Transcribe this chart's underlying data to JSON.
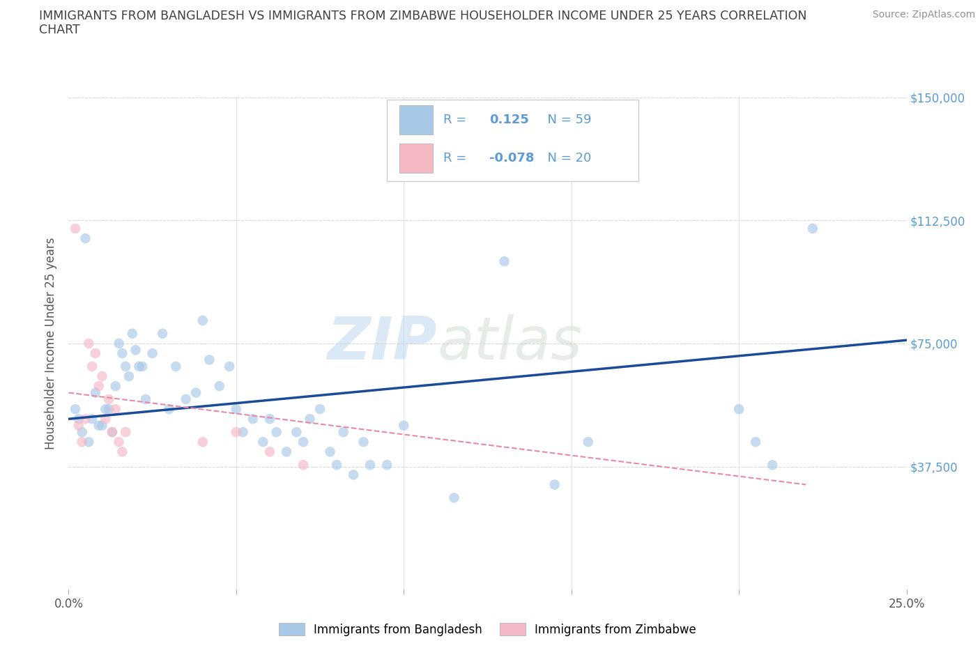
{
  "title_line1": "IMMIGRANTS FROM BANGLADESH VS IMMIGRANTS FROM ZIMBABWE HOUSEHOLDER INCOME UNDER 25 YEARS CORRELATION",
  "title_line2": "CHART",
  "source": "Source: ZipAtlas.com",
  "ylabel": "Householder Income Under 25 years",
  "xlim": [
    0,
    0.25
  ],
  "ylim": [
    0,
    150000
  ],
  "xticks": [
    0.0,
    0.05,
    0.1,
    0.15,
    0.2,
    0.25
  ],
  "xticklabels": [
    "0.0%",
    "",
    "",
    "",
    "",
    "25.0%"
  ],
  "yticks": [
    0,
    37500,
    75000,
    112500,
    150000
  ],
  "yticklabels_right": [
    "",
    "$37,500",
    "$75,000",
    "$112,500",
    "$150,000"
  ],
  "bg_color": "#ffffff",
  "grid_color": "#d8d8d8",
  "watermark_zip": "ZIP",
  "watermark_atlas": "atlas",
  "bangladesh_color": "#a8c8e8",
  "zimbabwe_color": "#f5b8c5",
  "bangladesh_line_color": "#1a4a9a",
  "zimbabwe_line_color": "#e888a8",
  "R_bangladesh": "0.125",
  "N_bangladesh": "59",
  "R_zimbabwe": "-0.078",
  "N_zimbabwe": "20",
  "bangladesh_label": "Immigrants from Bangladesh",
  "zimbabwe_label": "Immigrants from Zimbabwe",
  "bangladesh_scatter": [
    [
      0.002,
      55000
    ],
    [
      0.005,
      107000
    ],
    [
      0.012,
      55000
    ],
    [
      0.015,
      75000
    ],
    [
      0.018,
      65000
    ],
    [
      0.02,
      73000
    ],
    [
      0.022,
      68000
    ],
    [
      0.025,
      72000
    ],
    [
      0.028,
      78000
    ],
    [
      0.03,
      55000
    ],
    [
      0.032,
      68000
    ],
    [
      0.035,
      58000
    ],
    [
      0.038,
      60000
    ],
    [
      0.04,
      82000
    ],
    [
      0.042,
      70000
    ],
    [
      0.045,
      62000
    ],
    [
      0.048,
      68000
    ],
    [
      0.05,
      55000
    ],
    [
      0.052,
      48000
    ],
    [
      0.055,
      52000
    ],
    [
      0.058,
      45000
    ],
    [
      0.06,
      52000
    ],
    [
      0.062,
      48000
    ],
    [
      0.065,
      42000
    ],
    [
      0.068,
      48000
    ],
    [
      0.07,
      45000
    ],
    [
      0.072,
      52000
    ],
    [
      0.075,
      55000
    ],
    [
      0.078,
      42000
    ],
    [
      0.08,
      38000
    ],
    [
      0.082,
      48000
    ],
    [
      0.085,
      35000
    ],
    [
      0.088,
      45000
    ],
    [
      0.09,
      38000
    ],
    [
      0.095,
      38000
    ],
    [
      0.01,
      50000
    ],
    [
      0.003,
      52000
    ],
    [
      0.004,
      48000
    ],
    [
      0.006,
      45000
    ],
    [
      0.007,
      52000
    ],
    [
      0.008,
      60000
    ],
    [
      0.009,
      50000
    ],
    [
      0.011,
      55000
    ],
    [
      0.013,
      48000
    ],
    [
      0.014,
      62000
    ],
    [
      0.016,
      72000
    ],
    [
      0.017,
      68000
    ],
    [
      0.019,
      78000
    ],
    [
      0.021,
      68000
    ],
    [
      0.023,
      58000
    ],
    [
      0.1,
      50000
    ],
    [
      0.13,
      100000
    ],
    [
      0.155,
      45000
    ],
    [
      0.2,
      55000
    ],
    [
      0.205,
      45000
    ],
    [
      0.21,
      38000
    ],
    [
      0.222,
      110000
    ],
    [
      0.145,
      32000
    ],
    [
      0.115,
      28000
    ]
  ],
  "zimbabwe_scatter": [
    [
      0.002,
      110000
    ],
    [
      0.006,
      75000
    ],
    [
      0.007,
      68000
    ],
    [
      0.008,
      72000
    ],
    [
      0.009,
      62000
    ],
    [
      0.01,
      65000
    ],
    [
      0.011,
      52000
    ],
    [
      0.012,
      58000
    ],
    [
      0.013,
      48000
    ],
    [
      0.014,
      55000
    ],
    [
      0.015,
      45000
    ],
    [
      0.016,
      42000
    ],
    [
      0.04,
      45000
    ],
    [
      0.05,
      48000
    ],
    [
      0.06,
      42000
    ],
    [
      0.07,
      38000
    ],
    [
      0.003,
      50000
    ],
    [
      0.004,
      45000
    ],
    [
      0.005,
      52000
    ],
    [
      0.017,
      48000
    ]
  ],
  "bangladesh_line_x": [
    0.0,
    0.25
  ],
  "bangladesh_line_y": [
    52000,
    76000
  ],
  "zimbabwe_line_x": [
    0.0,
    0.22
  ],
  "zimbabwe_line_y": [
    60000,
    32000
  ],
  "marker_size": 110,
  "marker_alpha": 0.65,
  "title_color": "#404040",
  "tick_color": "#5b9bd5",
  "source_color": "#909090",
  "legend_text_color": "#5b9bd5",
  "legend_box_edge_color": "#cccccc"
}
